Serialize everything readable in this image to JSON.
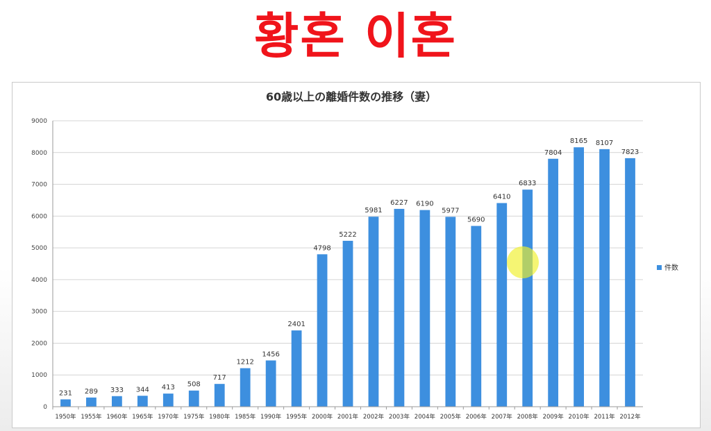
{
  "headline": "황혼 이혼",
  "chart_data": {
    "type": "bar",
    "title": "60歳以上の離婚件数の推移（妻）",
    "xlabel": "",
    "ylabel": "",
    "ylim": [
      0,
      9000
    ],
    "yticks": [
      0,
      1000,
      2000,
      3000,
      4000,
      5000,
      6000,
      7000,
      8000,
      9000
    ],
    "grid": true,
    "legend_position": "right",
    "categories": [
      "1950年",
      "1955年",
      "1960年",
      "1965年",
      "1970年",
      "1975年",
      "1980年",
      "1985年",
      "1990年",
      "1995年",
      "2000年",
      "2001年",
      "2002年",
      "2003年",
      "2004年",
      "2005年",
      "2006年",
      "2007年",
      "2008年",
      "2009年",
      "2010年",
      "2011年",
      "2012年"
    ],
    "series": [
      {
        "name": "件数",
        "color": "#3d8fdf",
        "values": [
          231,
          289,
          333,
          344,
          413,
          508,
          717,
          1212,
          1456,
          2401,
          4798,
          5222,
          5981,
          6227,
          6190,
          5977,
          5690,
          6410,
          6833,
          7804,
          8165,
          8107,
          7823
        ]
      }
    ]
  }
}
